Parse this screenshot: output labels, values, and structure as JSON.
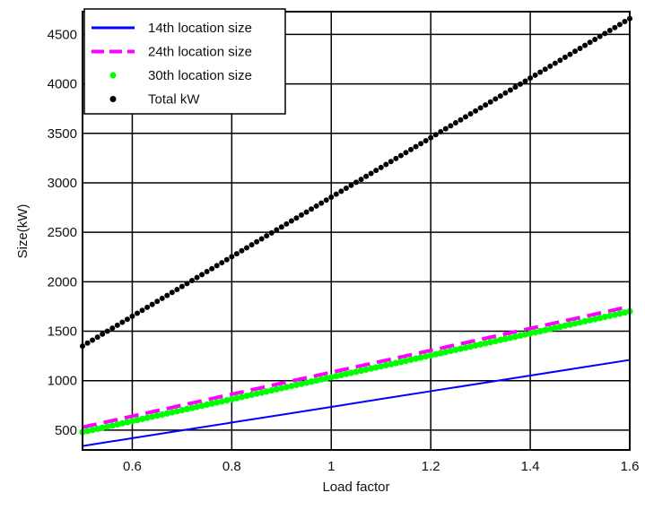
{
  "chart_data": {
    "type": "line",
    "title": "",
    "xlabel": "Load factor",
    "ylabel": "Size(kW)",
    "xlim": [
      0.5,
      1.6
    ],
    "ylim": [
      300,
      4730
    ],
    "xticks": [
      0.6,
      0.8,
      1,
      1.2,
      1.4,
      1.6
    ],
    "xtick_labels": [
      "0.6",
      "0.8",
      "1",
      "1.2",
      "1.4",
      "1.6"
    ],
    "yticks": [
      500,
      1000,
      1500,
      2000,
      2500,
      3000,
      3500,
      4000,
      4500
    ],
    "ytick_labels": [
      "500",
      "1000",
      "1500",
      "2000",
      "2500",
      "3000",
      "3500",
      "4000",
      "4500"
    ],
    "grid": true,
    "legend_placement": "top-left",
    "x": [
      0.5,
      0.6,
      0.7,
      0.8,
      0.9,
      1.0,
      1.1,
      1.2,
      1.3,
      1.4,
      1.5,
      1.6
    ],
    "series": [
      {
        "name": "14th location size",
        "color": "#0000ff",
        "style": "solid",
        "values": [
          340,
          419,
          498,
          577,
          656,
          735,
          815,
          894,
          973,
          1052,
          1131,
          1210
        ]
      },
      {
        "name": "24th location size",
        "color": "#ff00ff",
        "style": "dashed",
        "values": [
          530,
          641,
          752,
          863,
          974,
          1085,
          1195,
          1306,
          1417,
          1528,
          1639,
          1750
        ]
      },
      {
        "name": "30th location size",
        "color": "#00ff00",
        "style": "markers",
        "values": [
          480,
          591,
          702,
          813,
          924,
          1035,
          1145,
          1256,
          1367,
          1478,
          1589,
          1700
        ]
      },
      {
        "name": "Total kW",
        "color": "#000000",
        "style": "markers",
        "values": [
          1350,
          1651,
          1952,
          2253,
          2554,
          2855,
          3155,
          3456,
          3757,
          4058,
          4359,
          4660
        ]
      }
    ]
  }
}
